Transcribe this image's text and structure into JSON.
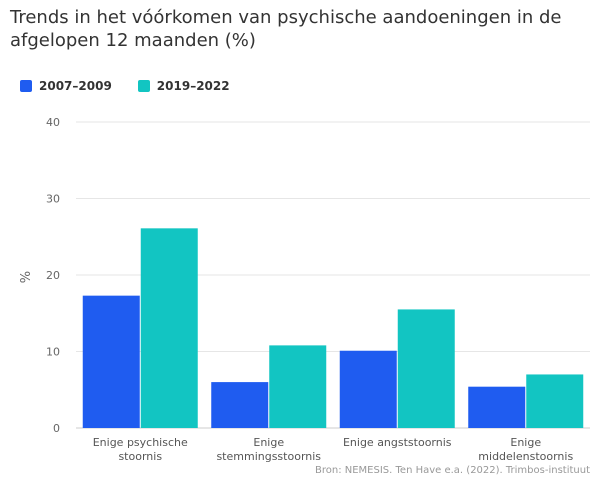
{
  "title": "Trends in het vóórkomen van psychische aandoeningen in de afgelopen 12 maanden (%)",
  "source": "Bron: NEMESIS. Ten Have e.a. (2022). Trimbos-instituut",
  "chart_data": {
    "type": "bar",
    "title": "Trends in het vóórkomen van psychische aandoeningen in de afgelopen 12 maanden (%)",
    "xlabel": "",
    "ylabel": "%",
    "ylim": [
      0,
      40
    ],
    "yticks": [
      0,
      10,
      20,
      30,
      40
    ],
    "grid": true,
    "legend_position": "top-left",
    "categories": [
      [
        "Enige psychische",
        "stoornis"
      ],
      [
        "Enige",
        "stemmingsstoornis"
      ],
      [
        "Enige angststoornis"
      ],
      [
        "Enige",
        "middelenstoornis"
      ]
    ],
    "series": [
      {
        "name": "2007–2009",
        "color": "#1f5cf0",
        "values": [
          17.3,
          6.0,
          10.1,
          5.4
        ]
      },
      {
        "name": "2019–2022",
        "color": "#12c5c2",
        "values": [
          26.1,
          10.8,
          15.5,
          7.0
        ]
      }
    ]
  }
}
